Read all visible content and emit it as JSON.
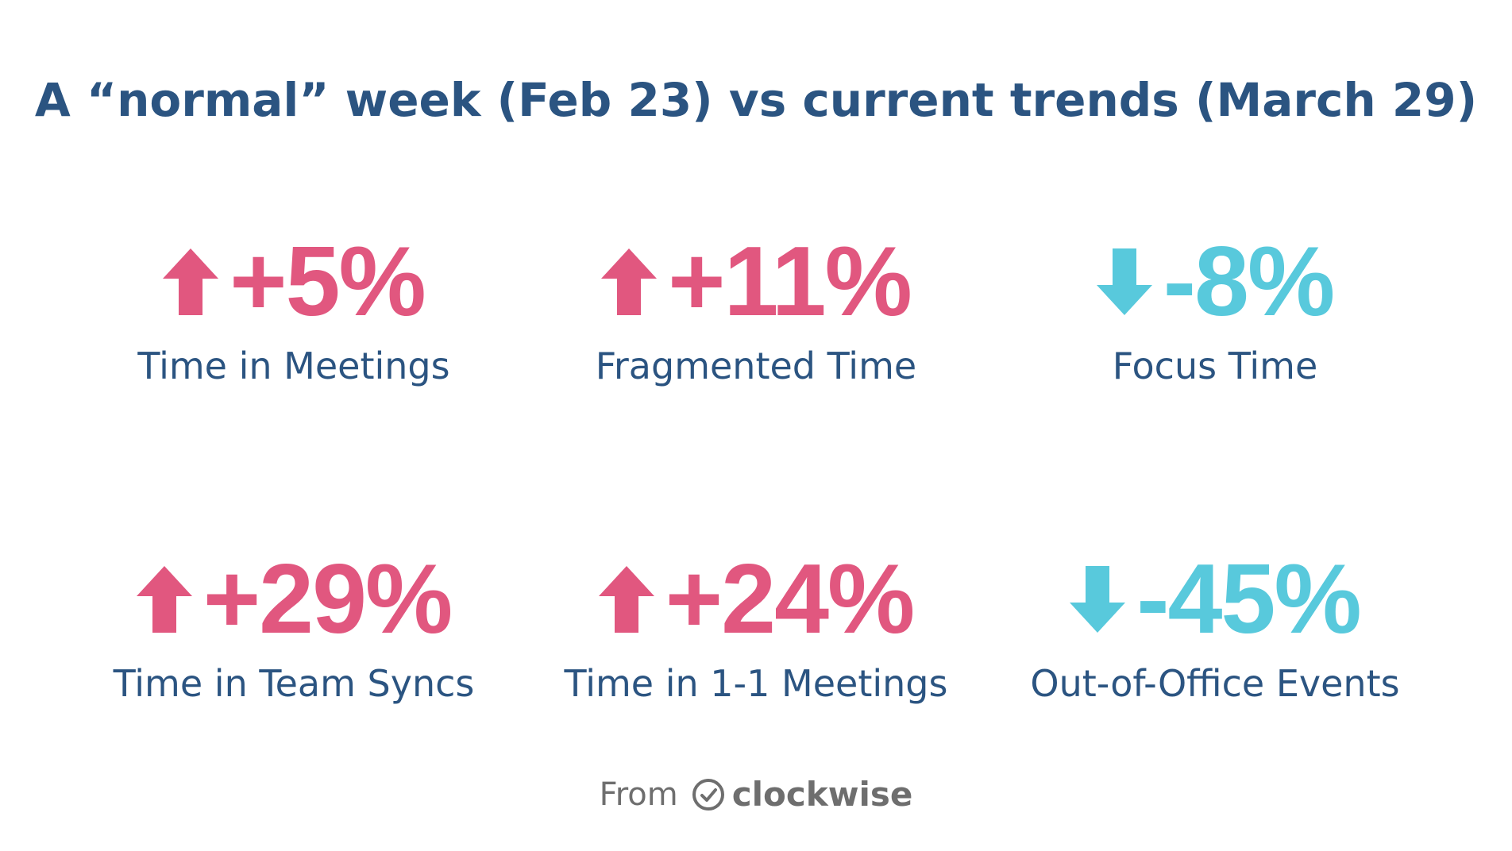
{
  "title": "A “normal” week (Feb 23) vs current trends (March 29)",
  "colors": {
    "title": "#2b5481",
    "up": "#e1577f",
    "down": "#58c9dc",
    "footer": "#6e6e6e"
  },
  "stats": [
    {
      "direction": "up",
      "value": "+5%",
      "label": "Time in Meetings",
      "icon": "arrow-up-icon"
    },
    {
      "direction": "up",
      "value": "+11%",
      "label": "Fragmented Time",
      "icon": "arrow-up-icon"
    },
    {
      "direction": "down",
      "value": "-8%",
      "label": "Focus Time",
      "icon": "arrow-down-icon"
    },
    {
      "direction": "up",
      "value": "+29%",
      "label": "Time in Team Syncs",
      "icon": "arrow-up-icon"
    },
    {
      "direction": "up",
      "value": "+24%",
      "label": "Time in 1-1 Meetings",
      "icon": "arrow-up-icon"
    },
    {
      "direction": "down",
      "value": "-45%",
      "label": "Out-of-Office Events",
      "icon": "arrow-down-icon"
    }
  ],
  "footer": {
    "from": "From",
    "brand": "clockwise",
    "icon": "clock-check-icon"
  }
}
